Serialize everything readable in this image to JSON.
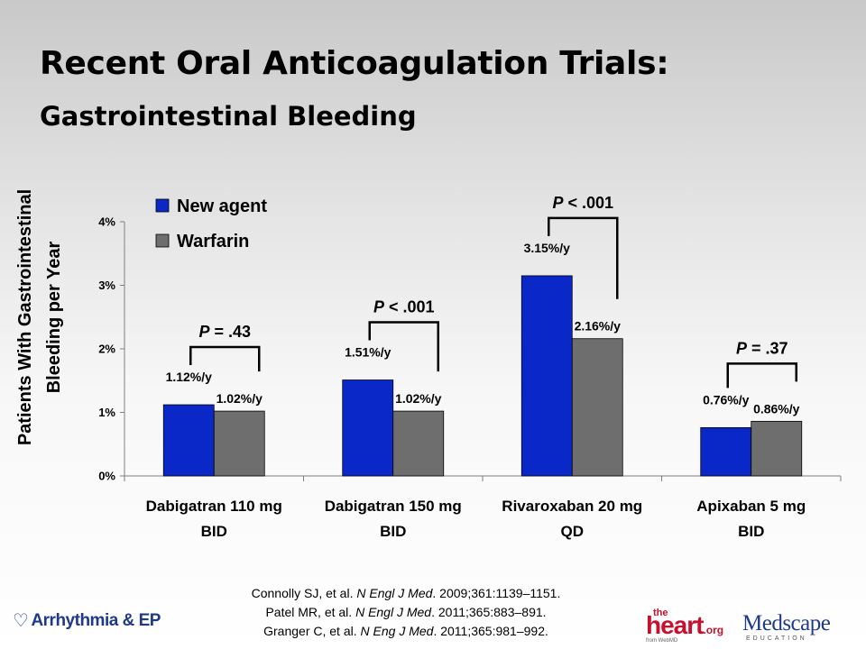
{
  "slide": {
    "title": "Recent Oral Anticoagulation Trials:",
    "subtitle": "Gastrointestinal Bleeding"
  },
  "chart_data": {
    "type": "bar",
    "ylabel_lines": [
      "Patients With Gastrointestinal",
      "Bleeding per Year"
    ],
    "xlabel": "",
    "ylim": [
      0,
      4
    ],
    "y_ticks": [
      0,
      1,
      2,
      3,
      4
    ],
    "y_tick_labels": [
      "0%",
      "1%",
      "2%",
      "3%",
      "4%"
    ],
    "grid": false,
    "legend_position": "top-left",
    "categories": [
      [
        "Dabigatran 110 mg",
        "BID"
      ],
      [
        "Dabigatran 150 mg",
        "BID"
      ],
      [
        "Rivaroxaban 20 mg",
        "QD"
      ],
      [
        "Apixaban 5 mg",
        "BID"
      ]
    ],
    "series": [
      {
        "name": "New agent",
        "color": "#0a28c8",
        "values": [
          1.12,
          1.51,
          3.15,
          0.76
        ],
        "labels": [
          "1.12%/y",
          "1.51%/y",
          "3.15%/y",
          "0.76%/y"
        ]
      },
      {
        "name": "Warfarin",
        "color": "#6e6e6e",
        "values": [
          1.02,
          1.02,
          2.16,
          0.86
        ],
        "labels": [
          "1.02%/y",
          "1.02%/y",
          "2.16%/y",
          "0.86%/y"
        ]
      }
    ],
    "p_values": [
      {
        "prefix": "P",
        "rest": " = .43"
      },
      {
        "prefix": "P",
        "rest": " < .001"
      },
      {
        "prefix": "P",
        "rest": " < .001"
      },
      {
        "prefix": "P",
        "rest": " = .37"
      }
    ]
  },
  "references": [
    {
      "pre": "Connolly SJ, et al. ",
      "journal": "N Engl J Med",
      "post": ". 2009;361:1139–1151."
    },
    {
      "pre": "Patel MR, et al. ",
      "journal": "N Engl J Med",
      "post": ". 2011;365:883–891."
    },
    {
      "pre": "Granger C, et al. ",
      "journal": "N Eng J Med",
      "post": ". 2011;365:981–992."
    }
  ],
  "logos": {
    "arrhythmia": "Arrhythmia & EP",
    "heart_the": "the",
    "heart_main": "heart",
    "heart_org": ".org",
    "heart_sub": "from WebMD",
    "medscape_main": "Medscape",
    "medscape_sub": "EDUCATION"
  }
}
